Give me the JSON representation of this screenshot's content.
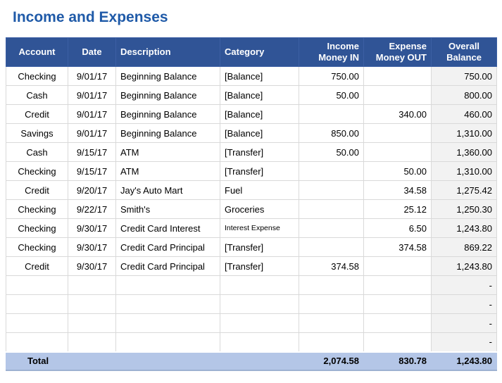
{
  "title": "Income and Expenses",
  "colors": {
    "title_text": "#1F5AA8",
    "header_bg": "#305496",
    "header_text": "#FFFFFF",
    "balance_column_bg": "#F2F2F2",
    "total_row_bg": "#B4C6E7",
    "grid_border": "#D9D9D9"
  },
  "table": {
    "columns": [
      {
        "id": "account",
        "label_line1": "Account",
        "label_line2": ""
      },
      {
        "id": "date",
        "label_line1": "Date",
        "label_line2": ""
      },
      {
        "id": "description",
        "label_line1": "Description",
        "label_line2": ""
      },
      {
        "id": "category",
        "label_line1": "Category",
        "label_line2": ""
      },
      {
        "id": "income",
        "label_line1": "Income",
        "label_line2": "Money IN"
      },
      {
        "id": "expense",
        "label_line1": "Expense",
        "label_line2": "Money OUT"
      },
      {
        "id": "overall",
        "label_line1": "Overall",
        "label_line2": "Balance"
      }
    ],
    "rows": [
      {
        "account": "Checking",
        "date": "9/01/17",
        "description": "Beginning Balance",
        "category": "[Balance]",
        "income": "750.00",
        "expense": "",
        "balance": "750.00"
      },
      {
        "account": "Cash",
        "date": "9/01/17",
        "description": "Beginning Balance",
        "category": "[Balance]",
        "income": "50.00",
        "expense": "",
        "balance": "800.00"
      },
      {
        "account": "Credit",
        "date": "9/01/17",
        "description": "Beginning Balance",
        "category": "[Balance]",
        "income": "",
        "expense": "340.00",
        "balance": "460.00"
      },
      {
        "account": "Savings",
        "date": "9/01/17",
        "description": "Beginning Balance",
        "category": "[Balance]",
        "income": "850.00",
        "expense": "",
        "balance": "1,310.00"
      },
      {
        "account": "Cash",
        "date": "9/15/17",
        "description": "ATM",
        "category": "[Transfer]",
        "income": "50.00",
        "expense": "",
        "balance": "1,360.00"
      },
      {
        "account": "Checking",
        "date": "9/15/17",
        "description": "ATM",
        "category": "[Transfer]",
        "income": "",
        "expense": "50.00",
        "balance": "1,310.00"
      },
      {
        "account": "Credit",
        "date": "9/20/17",
        "description": "Jay's Auto Mart",
        "category": "Fuel",
        "income": "",
        "expense": "34.58",
        "balance": "1,275.42"
      },
      {
        "account": "Checking",
        "date": "9/22/17",
        "description": "Smith's",
        "category": "Groceries",
        "income": "",
        "expense": "25.12",
        "balance": "1,250.30"
      },
      {
        "account": "Checking",
        "date": "9/30/17",
        "description": "Credit Card Interest",
        "category": "Interest Expense",
        "category_small": true,
        "income": "",
        "expense": "6.50",
        "balance": "1,243.80"
      },
      {
        "account": "Checking",
        "date": "9/30/17",
        "description": "Credit Card Principal",
        "category": "[Transfer]",
        "income": "",
        "expense": "374.58",
        "balance": "869.22"
      },
      {
        "account": "Credit",
        "date": "9/30/17",
        "description": "Credit Card Principal",
        "category": "[Transfer]",
        "income": "374.58",
        "expense": "",
        "balance": "1,243.80"
      },
      {
        "account": "",
        "date": "",
        "description": "",
        "category": "",
        "income": "",
        "expense": "",
        "balance": "-"
      },
      {
        "account": "",
        "date": "",
        "description": "",
        "category": "",
        "income": "",
        "expense": "",
        "balance": "-"
      },
      {
        "account": "",
        "date": "",
        "description": "",
        "category": "",
        "income": "",
        "expense": "",
        "balance": "-"
      },
      {
        "account": "",
        "date": "",
        "description": "",
        "category": "",
        "income": "",
        "expense": "",
        "balance": "-"
      }
    ],
    "total": {
      "label": "Total",
      "income": "2,074.58",
      "expense": "830.78",
      "balance": "1,243.80"
    }
  }
}
